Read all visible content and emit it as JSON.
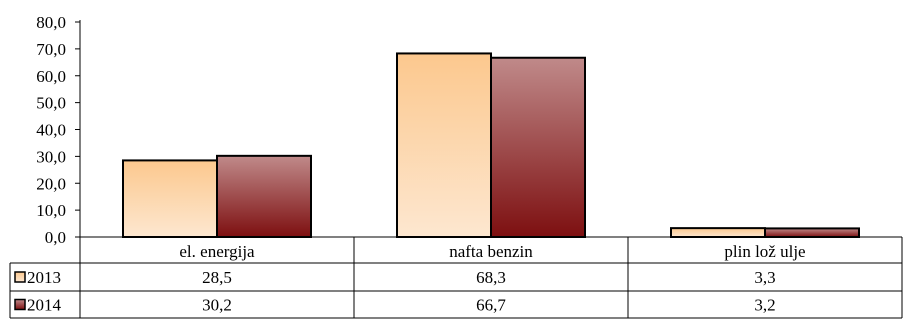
{
  "chart_data": {
    "type": "bar",
    "title": "",
    "xlabel": "",
    "ylabel": "",
    "categories": [
      "el. energija",
      "nafta benzin",
      "plin lož ulje"
    ],
    "series": [
      {
        "name": "2013",
        "values": [
          28.5,
          68.3,
          3.3
        ],
        "color": "#fcc88e",
        "color_light": "#fde7d0",
        "value_labels": [
          "28,5",
          "68,3",
          "3,3"
        ]
      },
      {
        "name": "2014",
        "values": [
          30.2,
          66.7,
          3.2
        ],
        "color": "#7d0f10",
        "color_light": "#c08a8a",
        "value_labels": [
          "30,2",
          "66,7",
          "3,2"
        ]
      }
    ],
    "ylim": [
      0,
      80
    ],
    "yticks": [
      0,
      10,
      20,
      30,
      40,
      50,
      60,
      70,
      80
    ],
    "ytick_labels": [
      "0,0",
      "10,0",
      "20,0",
      "30,0",
      "40,0",
      "50,0",
      "60,0",
      "70,0",
      "80,0"
    ],
    "grid": false,
    "legend": "data-table-left"
  }
}
